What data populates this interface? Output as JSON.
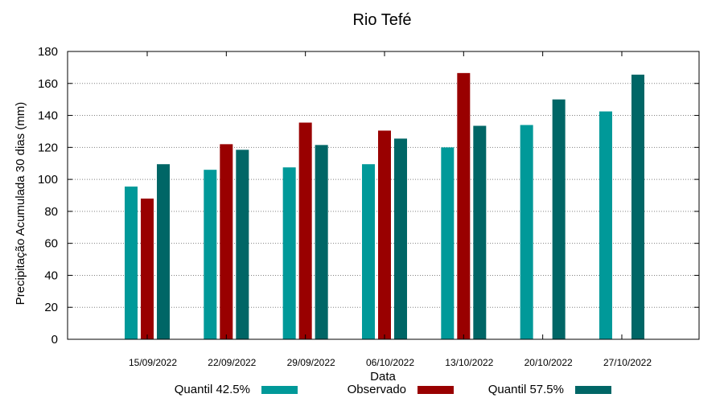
{
  "chart_data": {
    "type": "bar",
    "title": "Rio Tefé",
    "xlabel": "Data",
    "ylabel": "Precipitação Acumulada 30 dias (mm)",
    "ylim": [
      0,
      180
    ],
    "yticks": [
      0,
      20,
      40,
      60,
      80,
      100,
      120,
      140,
      160,
      180
    ],
    "grid": "horizontal",
    "legend_position": "bottom",
    "categories": [
      "15/09/2022",
      "22/09/2022",
      "29/09/2022",
      "06/10/2022",
      "13/10/2022",
      "20/10/2022",
      "27/10/2022"
    ],
    "series": [
      {
        "name": "Quantil 42.5%",
        "color": "#009999",
        "values": [
          95.5,
          106,
          107.5,
          109.5,
          120,
          134,
          142.5
        ]
      },
      {
        "name": "Observado",
        "color": "#990000",
        "values": [
          88,
          122,
          135.5,
          130.5,
          166.5,
          null,
          null
        ]
      },
      {
        "name": "Quantil 57.5%",
        "color": "#006666",
        "values": [
          109.5,
          118.5,
          121.5,
          125.5,
          133.5,
          150,
          165.5
        ]
      }
    ]
  }
}
